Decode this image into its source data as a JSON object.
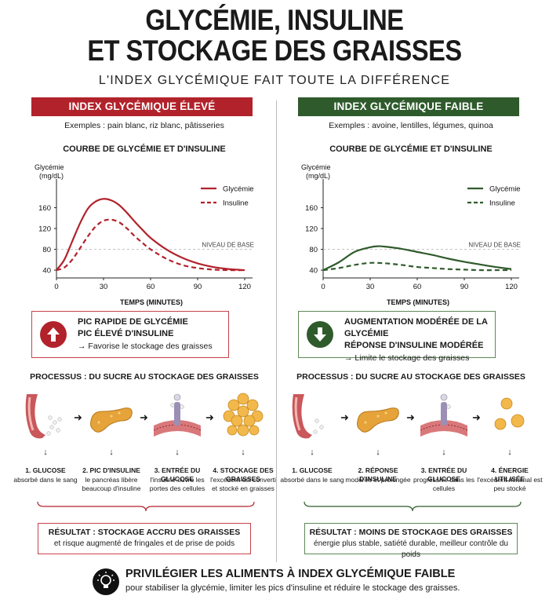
{
  "header": {
    "title_line1": "GLYCÉMIE, INSULINE",
    "title_line2": "ET STOCKAGE DES GRAISSES",
    "subtitle": "L'INDEX GLYCÉMIQUE FAIT TOUTE LA DIFFÉRENCE"
  },
  "colors": {
    "high": "#b2222b",
    "low": "#2f5b2c",
    "baseline": "#c0c0c0"
  },
  "high": {
    "banner": "INDEX GLYCÉMIQUE ÉLEVÉ",
    "examples": "Exemples : pain blanc, riz blanc, pâtisseries",
    "chart_title": "COURBE DE GLYCÉMIE ET D'INSULINE",
    "summary": {
      "icon": "arrow-up-icon",
      "line1": "PIC RAPIDE DE GLYCÉMIE",
      "line2": "PIC ÉLEVÉ D'INSULINE",
      "line3": "→ Favorise le stockage des graisses"
    },
    "process_title": "PROCESSUS : DU SUCRE AU STOCKAGE DES GRAISSES",
    "steps": [
      {
        "name": "1. GLUCOSE",
        "desc": "absorbé dans le sang",
        "icon": "intestine-icon"
      },
      {
        "name": "2. PIC D'INSULINE",
        "desc": "le pancréas libère beaucoup d'insuline",
        "icon": "pancreas-icon"
      },
      {
        "name": "3. ENTRÉE DU GLUCOSE",
        "desc": "l'insuline ouvre les portes des cellules",
        "icon": "cell-receptor-icon"
      },
      {
        "name": "4. STOCKAGE DES GRAISSES",
        "desc": "l'excédent est converti et stocké en graisses",
        "icon": "fat-cells-icon"
      }
    ],
    "result": {
      "line1": "RÉSULTAT : STOCKAGE ACCRU DES GRAISSES",
      "line2": "et risque augmenté de fringales et de prise de poids"
    }
  },
  "low": {
    "banner": "INDEX GLYCÉMIQUE FAIBLE",
    "examples": "Exemples : avoine, lentilles, légumes, quinoa",
    "chart_title": "COURBE DE GLYCÉMIE ET D'INSULINE",
    "summary": {
      "icon": "arrow-down-icon",
      "line1": "AUGMENTATION MODÉRÉE DE LA GLYCÉMIE",
      "line2": "RÉPONSE D'INSULINE MODÉRÉE",
      "line3": "→ Limite le stockage des graisses"
    },
    "process_title": "PROCESSUS : DU SUCRE AU STOCKAGE DES GRAISSES",
    "steps": [
      {
        "name": "1. GLUCOSE",
        "desc": "absorbé dans le sang",
        "icon": "intestine-icon"
      },
      {
        "name": "2. RÉPONSE D'INSULINE",
        "desc": "modérée et prolongée",
        "icon": "pancreas-icon"
      },
      {
        "name": "3. ENTRÉE DU GLUCOSE",
        "desc": "progressive dans les cellules",
        "icon": "cell-receptor-icon"
      },
      {
        "name": "4. ÉNERGIE UTILISÉE",
        "desc": "l'excédent minimal est peu stocké",
        "icon": "energy-cells-icon"
      }
    ],
    "result": {
      "line1": "RÉSULTAT : MOINS DE STOCKAGE DES GRAISSES",
      "line2": "énergie plus stable, satiété durable, meilleur contrôle du poids"
    }
  },
  "footer": {
    "icon": "lightbulb-icon",
    "main": "PRIVILÉGIER LES ALIMENTS À INDEX GLYCÉMIQUE FAIBLE",
    "sub": "pour stabiliser la glycémie, limiter les pics d'insuline et réduire le stockage des graisses."
  },
  "chart_data": [
    {
      "type": "line",
      "ylabel": "Glycémie (mg/dL)",
      "xlabel": "TEMPS (MINUTES)",
      "xlim": [
        0,
        125
      ],
      "ylim": [
        25,
        185
      ],
      "xticks": [
        0,
        30,
        60,
        90,
        120
      ],
      "yticks": [
        40,
        80,
        120,
        160
      ],
      "baseline": {
        "value": 80,
        "label": "NIVEAU DE BASE"
      },
      "legend_position": "top-right",
      "series": [
        {
          "name": "Glycémie",
          "style": "solid",
          "color": "#b2222b",
          "x": [
            0,
            5,
            10,
            15,
            20,
            25,
            30,
            35,
            40,
            45,
            50,
            55,
            60,
            70,
            80,
            90,
            100,
            110,
            120
          ],
          "y": [
            40,
            60,
            95,
            130,
            158,
            172,
            177,
            174,
            165,
            150,
            133,
            117,
            102,
            80,
            64,
            53,
            46,
            42,
            40
          ]
        },
        {
          "name": "Insuline",
          "style": "dashed",
          "color": "#b2222b",
          "x": [
            0,
            5,
            10,
            15,
            20,
            25,
            30,
            35,
            40,
            45,
            50,
            55,
            60,
            70,
            80,
            90,
            100,
            110,
            120
          ],
          "y": [
            40,
            45,
            60,
            82,
            105,
            124,
            135,
            137,
            132,
            120,
            105,
            92,
            80,
            62,
            50,
            44,
            41,
            40,
            40
          ]
        }
      ]
    },
    {
      "type": "line",
      "ylabel": "Glycémie (mg/dL)",
      "xlabel": "TEMPS (MINUTES)",
      "xlim": [
        0,
        125
      ],
      "ylim": [
        25,
        185
      ],
      "xticks": [
        0,
        30,
        60,
        90,
        120
      ],
      "yticks": [
        40,
        80,
        120,
        160
      ],
      "baseline": {
        "value": 80,
        "label": "NIVEAU DE BASE"
      },
      "legend_position": "top-right",
      "series": [
        {
          "name": "Glycémie",
          "style": "solid",
          "color": "#2f5b2c",
          "x": [
            0,
            10,
            20,
            30,
            35,
            40,
            50,
            60,
            70,
            80,
            90,
            100,
            110,
            120
          ],
          "y": [
            40,
            55,
            75,
            84,
            86,
            85,
            81,
            75,
            69,
            62,
            56,
            51,
            46,
            42
          ]
        },
        {
          "name": "Insuline",
          "style": "dashed",
          "color": "#2f5b2c",
          "x": [
            0,
            10,
            20,
            30,
            40,
            50,
            60,
            70,
            80,
            90,
            100,
            110,
            120
          ],
          "y": [
            40,
            44,
            50,
            54,
            53,
            50,
            46,
            44,
            42,
            41,
            40,
            40,
            40
          ]
        }
      ]
    }
  ]
}
